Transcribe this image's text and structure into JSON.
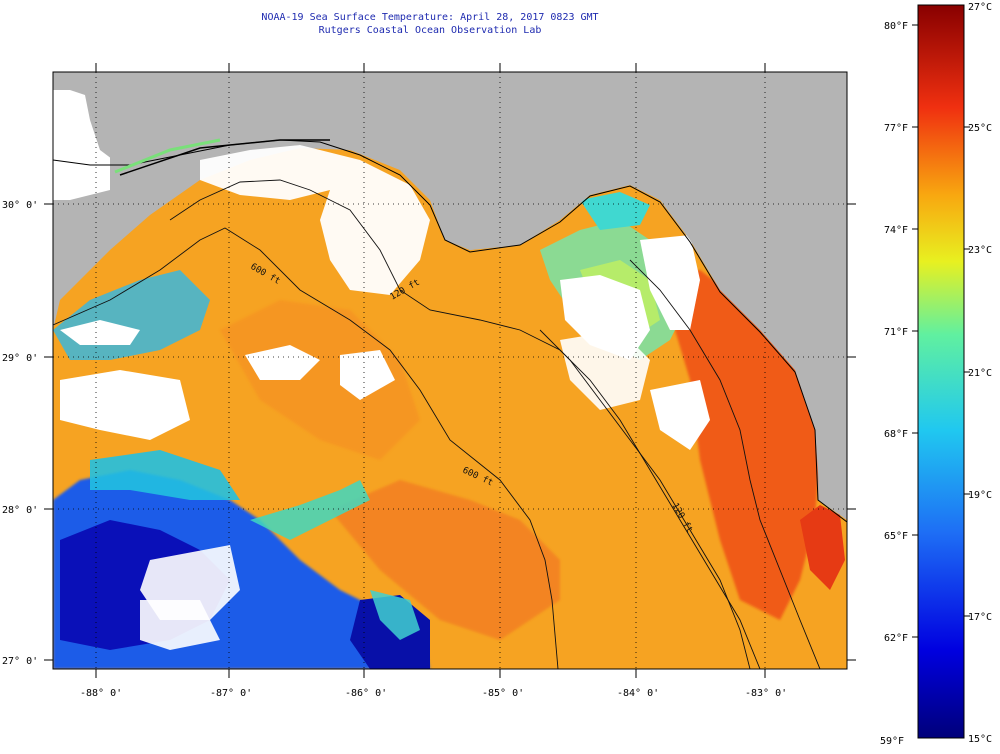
{
  "header": {
    "line1": "NOAA-19 Sea Surface Temperature:  April 28, 2017 0823 GMT",
    "line2": "Rutgers Coastal Ocean Observation Lab"
  },
  "map": {
    "lon_labels": [
      "-88° 0'",
      "-87° 0'",
      "-86° 0'",
      "-85° 0'",
      "-84° 0'",
      "-83° 0'"
    ],
    "lat_labels": [
      "30° 0'",
      "29° 0'",
      "28° 0'",
      "27° 0'"
    ],
    "contours": [
      "600 ft",
      "120 ft",
      "600 ft",
      "120 ft"
    ],
    "colors": {
      "land": "#b4b4b4",
      "cloud": "#ffffff",
      "warm_water": "#f5a020"
    }
  },
  "colorbar": {
    "celsius": [
      "27°C",
      "25°C",
      "23°C",
      "21°C",
      "19°C",
      "17°C",
      "15°C"
    ],
    "fahrenheit": [
      "80°F",
      "77°F",
      "74°F",
      "71°F",
      "68°F",
      "65°F",
      "62°F",
      "59°F"
    ],
    "min_c": 15,
    "max_c": 27
  }
}
